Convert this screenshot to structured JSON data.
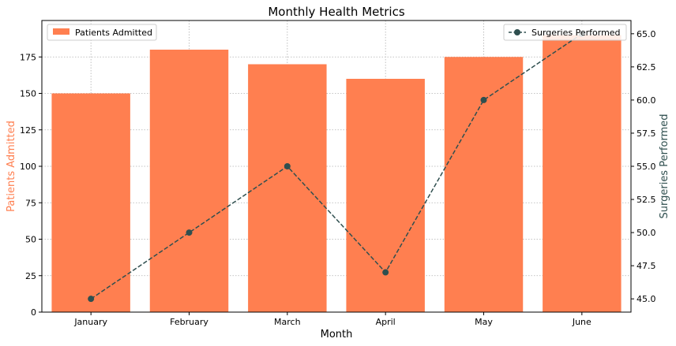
{
  "chart_data": {
    "type": "bar",
    "title": "Monthly Health Metrics",
    "xlabel": "Month",
    "ylabel": "Patients Admitted",
    "y2label": "Surgeries Performed",
    "categories": [
      "January",
      "February",
      "March",
      "April",
      "May",
      "June"
    ],
    "ylim": [
      0,
      200
    ],
    "y2lim": [
      44,
      66
    ],
    "yticks": [
      0,
      25,
      50,
      75,
      100,
      125,
      150,
      175
    ],
    "y2ticks": [
      45.0,
      47.5,
      50.0,
      52.5,
      55.0,
      57.5,
      60.0,
      62.5,
      65.0
    ],
    "grid": true,
    "series": [
      {
        "name": "Patients Admitted",
        "type": "bar",
        "axis": "left",
        "color": "#ff7f50",
        "values": [
          150,
          180,
          170,
          160,
          175,
          190
        ]
      },
      {
        "name": "Surgeries Performed",
        "type": "line",
        "axis": "right",
        "color": "#2f4f4f",
        "line_style": "dashed",
        "marker": "circle",
        "values": [
          45,
          50,
          55,
          47,
          60,
          65
        ]
      }
    ],
    "legend_left_position": "top-left",
    "legend_right_position": "top-right"
  }
}
